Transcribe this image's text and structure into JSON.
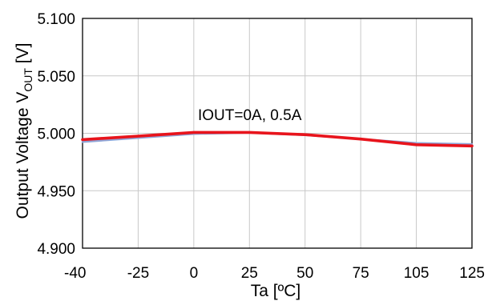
{
  "chart_data": {
    "type": "line",
    "xlabel": "Ta [ºC]",
    "ylabel": {
      "prefix": "Output Voltage V",
      "subscript": "OUT",
      "suffix": " [V]"
    },
    "x_ticks": [
      -40,
      -25,
      0,
      25,
      50,
      75,
      105,
      125
    ],
    "y_ticks": [
      "4.900",
      "4.950",
      "5.000",
      "5.050",
      "5.100"
    ],
    "xlim": [
      -40,
      125
    ],
    "ylim": [
      4.9,
      5.1
    ],
    "grid": true,
    "annotation": "IOUT=0A, 0.5A",
    "series": [
      {
        "color": "#8fa6d8",
        "points": [
          [
            -40,
            4.9925
          ],
          [
            -25,
            4.996
          ],
          [
            0,
            4.9995
          ],
          [
            25,
            5.0005
          ],
          [
            50,
            4.9985
          ],
          [
            75,
            4.995
          ],
          [
            105,
            4.9915
          ],
          [
            125,
            4.9905
          ]
        ]
      },
      {
        "color": "#e8141c",
        "points": [
          [
            -40,
            4.9945
          ],
          [
            -25,
            4.9975
          ],
          [
            0,
            5.0008
          ],
          [
            25,
            5.0008
          ],
          [
            50,
            4.9988
          ],
          [
            75,
            4.995
          ],
          [
            105,
            4.99
          ],
          [
            125,
            4.989
          ]
        ]
      }
    ]
  }
}
